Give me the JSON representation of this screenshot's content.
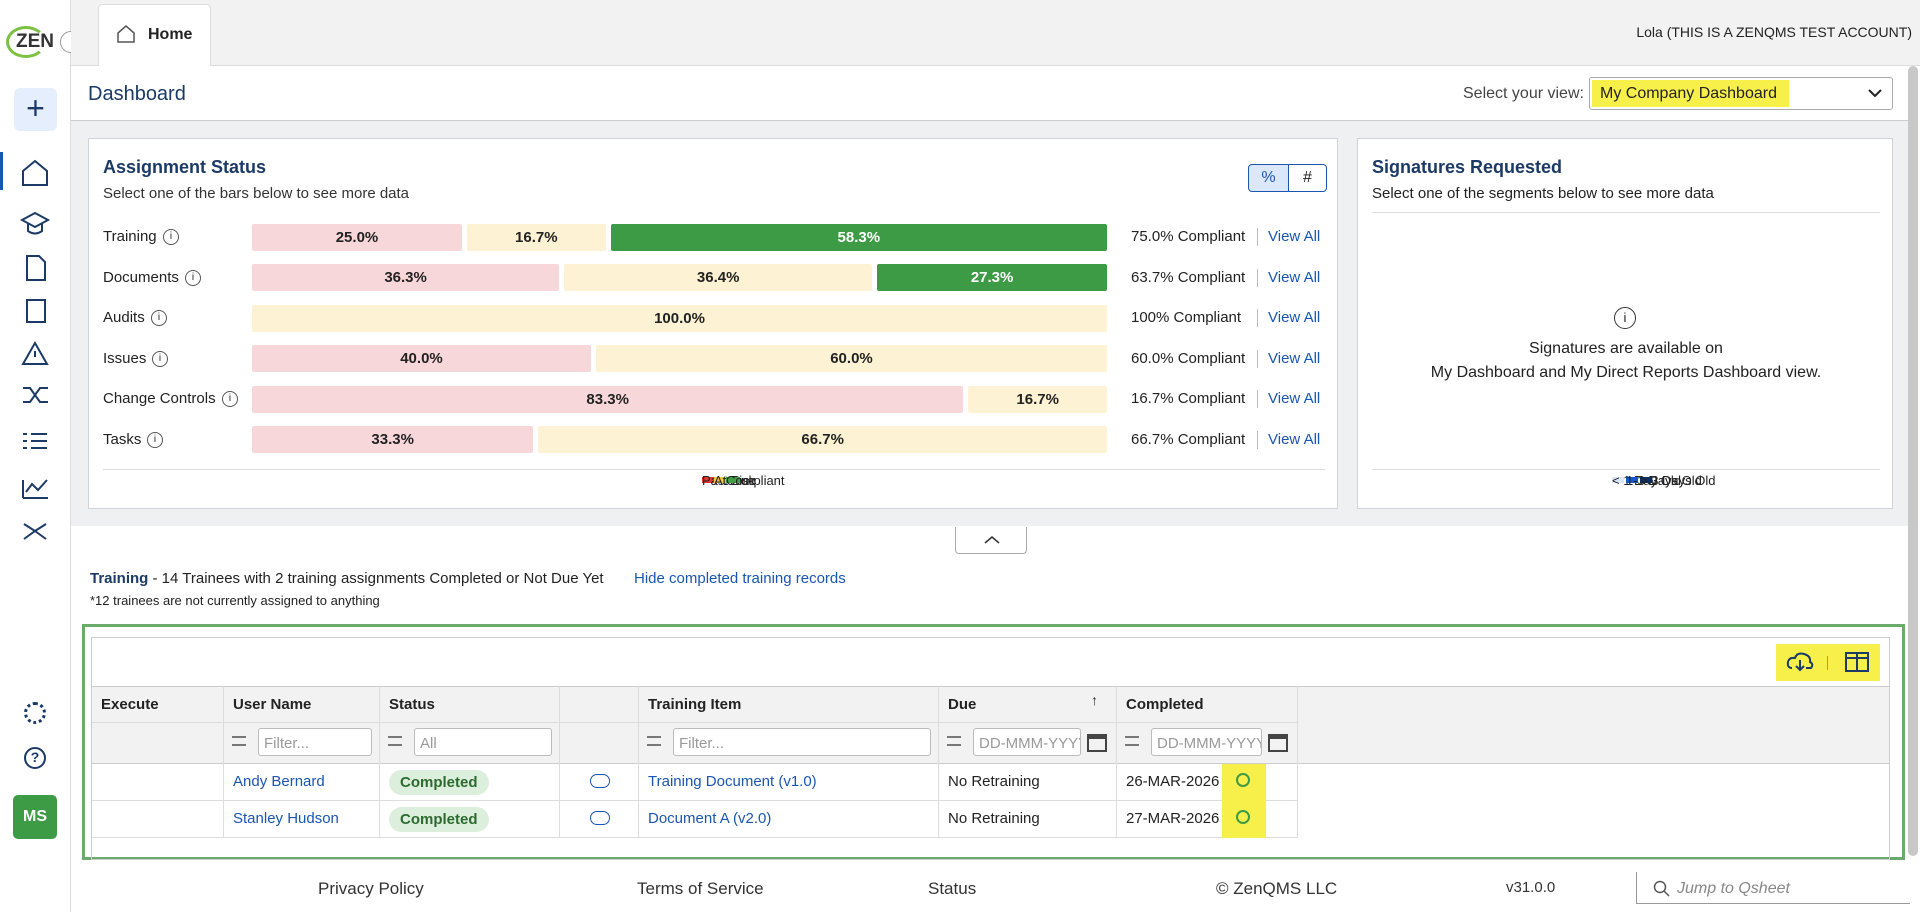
{
  "header": {
    "logo": "ZEN",
    "tab": "Home",
    "user": "Lola (THIS IS A ZENQMS TEST ACCOUNT)",
    "avatar": "MS"
  },
  "dashboard": {
    "title": "Dashboard",
    "view_label": "Select your view:",
    "view_value": "My Company Dashboard"
  },
  "assignment_status": {
    "title": "Assignment Status",
    "subtitle": "Select one of the bars below to see more data",
    "toggles": [
      "%",
      "#"
    ],
    "series": [
      {
        "name": "Past Due",
        "color": "#f8d7da",
        "legend_color": "#e53935"
      },
      {
        "name": "At Risk",
        "color": "#fdf3d4",
        "legend_color": "#f5c842"
      },
      {
        "name": "Compliant",
        "color": "#3d9a45",
        "legend_color": "#43a047"
      }
    ],
    "rows": [
      {
        "name": "Training",
        "values": [
          25,
          16.7,
          58.3
        ],
        "value_labels": [
          "25.0%",
          "16.7%",
          "58.3%"
        ],
        "compliance": "75.0% Compliant"
      },
      {
        "name": "Documents",
        "values": [
          36.3,
          36.4,
          27.3
        ],
        "value_labels": [
          "36.3%",
          "36.4%",
          "27.3%"
        ],
        "compliance": "63.7% Compliant"
      },
      {
        "name": "Audits",
        "values": [
          null,
          100,
          null
        ],
        "value_labels": [
          null,
          "100.0%",
          null
        ],
        "compliance": "100% Compliant"
      },
      {
        "name": "Issues",
        "values": [
          40,
          60,
          null
        ],
        "value_labels": [
          "40.0%",
          "60.0%",
          null
        ],
        "compliance": "60.0% Compliant"
      },
      {
        "name": "Change Controls",
        "values": [
          83.3,
          16.7,
          null
        ],
        "value_labels": [
          "83.3%",
          "16.7%",
          null
        ],
        "compliance": "16.7% Compliant"
      },
      {
        "name": "Tasks",
        "values": [
          33.3,
          66.7,
          null
        ],
        "value_labels": [
          "33.3%",
          "66.7%",
          null
        ],
        "compliance": "66.7% Compliant"
      }
    ],
    "view_all": "View All"
  },
  "signatures": {
    "title": "Signatures Requested",
    "subtitle": "Select one of the segments below to see more data",
    "message": [
      "Signatures are available on",
      "My Dashboard and My Direct Reports Dashboard view."
    ],
    "legend": [
      {
        "name": "< 1 Day Old",
        "color": "#dbe7fb"
      },
      {
        "name": "1-3 Days Old",
        "color": "#1a56c4"
      },
      {
        "name": "> 3 Days Old",
        "color": "#0d2d5e"
      }
    ]
  },
  "training": {
    "label": "Training",
    "summary": " - 14 Trainees with 2 training assignments Completed or Not Due Yet",
    "toggle": "Hide completed training records",
    "note": "*12 trainees are not currently assigned to anything",
    "columns": [
      "Execute",
      "User Name",
      "Status",
      null,
      "Training Item",
      "Due",
      "Completed"
    ],
    "filters": [
      null,
      "Filter...",
      "All",
      null,
      "Filter...",
      "DD-MMM-YYYY",
      "DD-MMM-YYYY"
    ],
    "rows": [
      {
        "user": "Andy Bernard",
        "status": "Completed",
        "item": "Training Document (v1.0)",
        "due": "No Retraining",
        "completed": "26-MAR-2026"
      },
      {
        "user": "Stanley Hudson",
        "status": "Completed",
        "item": "Document A (v2.0)",
        "due": "No Retraining",
        "completed": "27-MAR-2026"
      }
    ]
  },
  "footer": {
    "links": [
      "Privacy Policy",
      "Terms of Service",
      "Status",
      "© ZenQMS LLC",
      "v31.0.0"
    ],
    "search": "Jump to Qsheet"
  }
}
